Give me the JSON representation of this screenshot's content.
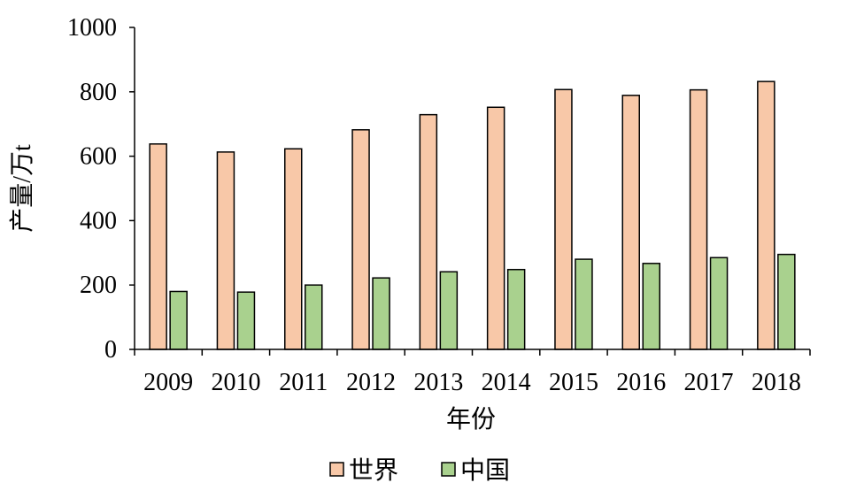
{
  "chart_data": {
    "type": "bar",
    "title": "",
    "xlabel": "年份",
    "ylabel": "产量/万t",
    "ylim": [
      0,
      1000
    ],
    "yticks": [
      0,
      200,
      400,
      600,
      800,
      1000
    ],
    "grid": false,
    "legend": "bottom",
    "categories": [
      "2009",
      "2010",
      "2011",
      "2012",
      "2013",
      "2014",
      "2015",
      "2016",
      "2017",
      "2018"
    ],
    "series": [
      {
        "name": "世界",
        "color": "#F8C8A8",
        "values": [
          638,
          613,
          623,
          682,
          729,
          752,
          807,
          789,
          806,
          832
        ]
      },
      {
        "name": "中国",
        "color": "#A9D18E",
        "values": [
          180,
          178,
          200,
          222,
          241,
          248,
          280,
          267,
          285,
          295
        ]
      }
    ]
  }
}
